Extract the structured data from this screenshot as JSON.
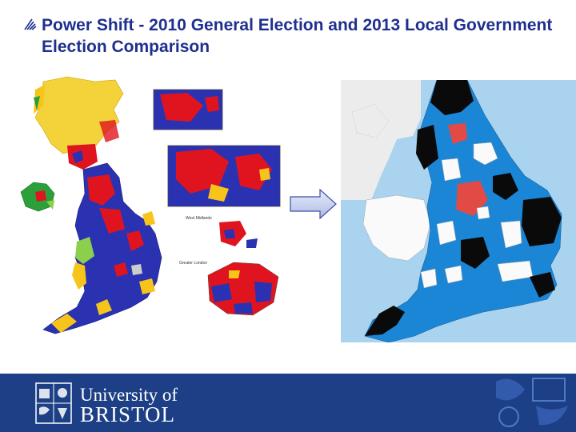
{
  "slide": {
    "title": "Power Shift - 2010 General Election and 2013 Local Government Election Comparison"
  },
  "left_map": {
    "inset_labels": [
      "West Midlands",
      "Greater London"
    ]
  },
  "footer": {
    "logo_line1": "University of",
    "logo_line2": "BRISTOL"
  },
  "colors": {
    "title": "#1f2f8f",
    "footer_bg": "#1d3f86",
    "conservative_blue": "#2b32b2",
    "labour_red": "#e0141e",
    "libdem_yellow": "#f7c41a",
    "snp_yellow": "#f3d23a",
    "council_blue": "#1c86d6",
    "council_black": "#0a0a0a",
    "council_red": "#e24a46",
    "sea_blue": "#a9d3ee"
  }
}
